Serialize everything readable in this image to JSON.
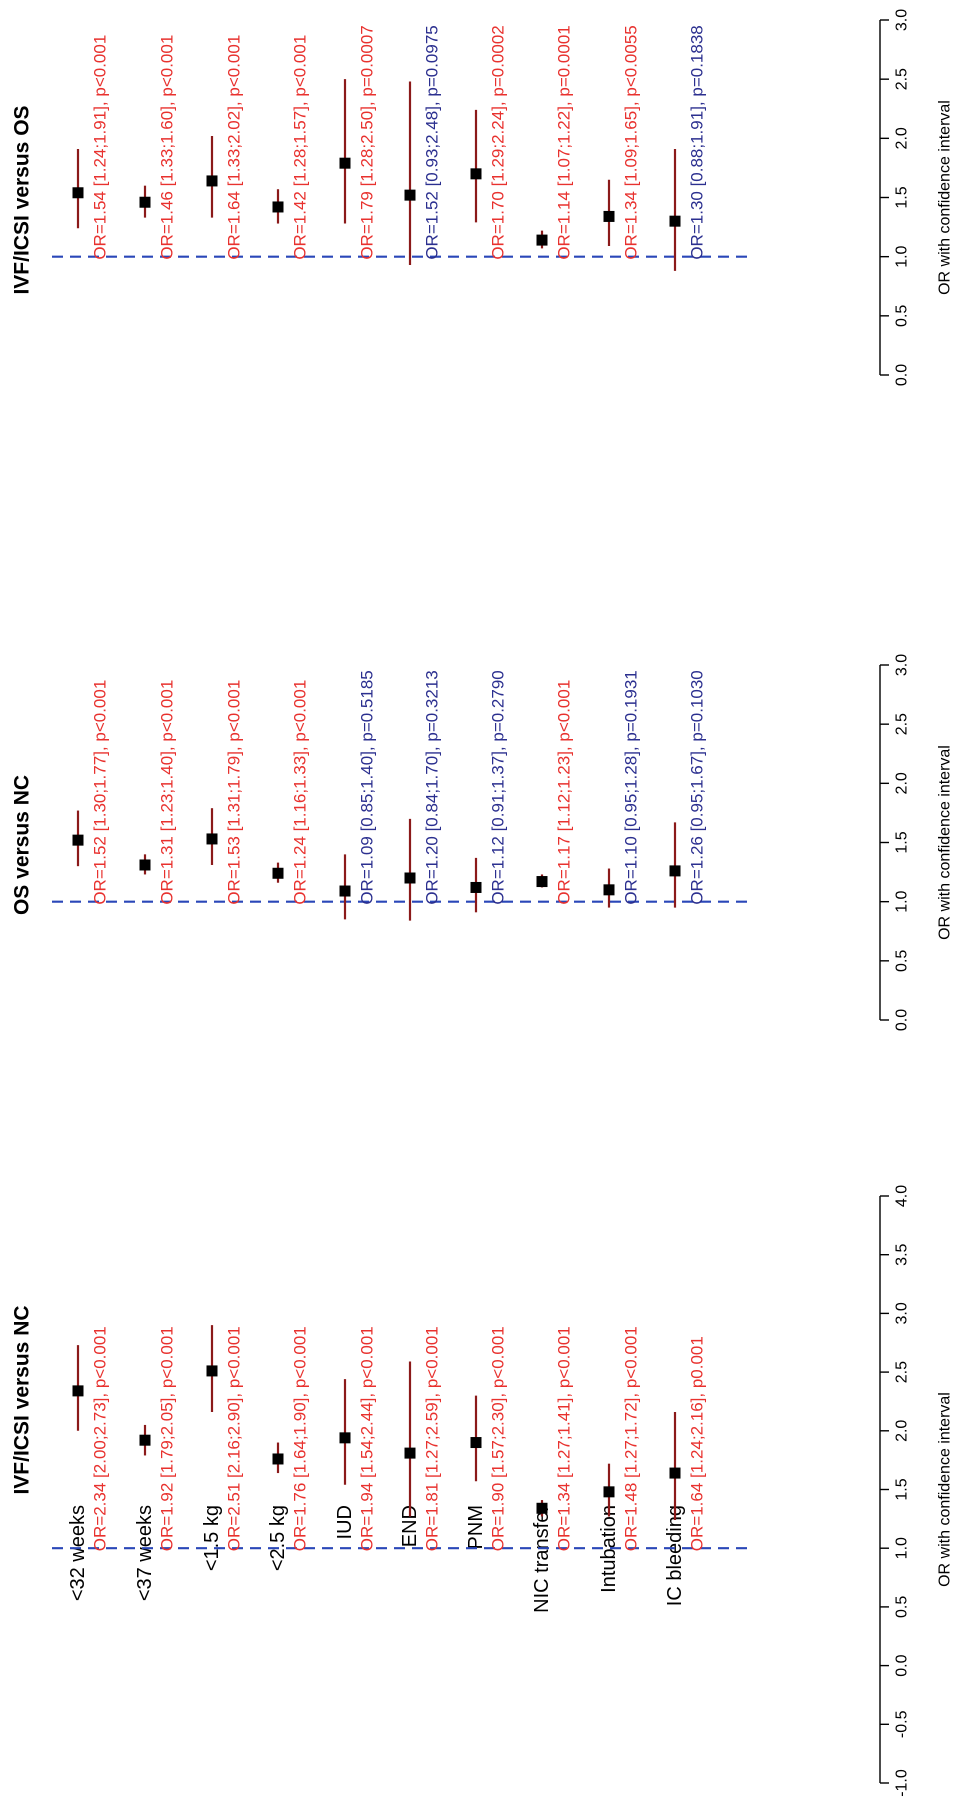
{
  "chart_data": {
    "type": "forest",
    "categories": [
      "<32 weeks",
      "<37 weeks",
      "<1.5 kg",
      "<2.5 kg",
      "IUD",
      "END",
      "PNM",
      "NIC transfer",
      "Intubation",
      "IC bleeding"
    ],
    "colors": {
      "significant": "#e8312e",
      "not_significant": "#2b2f8f",
      "interval": "#8b1a1a",
      "point": "#000000",
      "reference_line": "#2a47b8"
    },
    "panels": [
      {
        "title": "IVF/ICSI versus NC",
        "xlabel": "OR with confidence interval",
        "xlim": [
          -1.0,
          4.0
        ],
        "ticks": [
          "-1.0",
          "-0.5",
          "0.0",
          "0.5",
          "1.0",
          "1.5",
          "2.0",
          "2.5",
          "3.0",
          "3.5",
          "4.0"
        ],
        "reference": 1.0,
        "rows": [
          {
            "or": 2.34,
            "lo": 2.0,
            "hi": 2.73,
            "significant": true,
            "label": "OR=2.34 [2.00;2.73], p<0.001"
          },
          {
            "or": 1.92,
            "lo": 1.79,
            "hi": 2.05,
            "significant": true,
            "label": "OR=1.92 [1.79;2.05], p<0.001"
          },
          {
            "or": 2.51,
            "lo": 2.16,
            "hi": 2.9,
            "significant": true,
            "label": "OR=2.51 [2.16;2.90], p<0.001"
          },
          {
            "or": 1.76,
            "lo": 1.64,
            "hi": 1.9,
            "significant": true,
            "label": "OR=1.76 [1.64;1.90], p<0.001"
          },
          {
            "or": 1.94,
            "lo": 1.54,
            "hi": 2.44,
            "significant": true,
            "label": "OR=1.94 [1.54;2.44], p<0.001"
          },
          {
            "or": 1.81,
            "lo": 1.27,
            "hi": 2.59,
            "significant": true,
            "label": "OR=1.81 [1.27;2.59], p<0.001"
          },
          {
            "or": 1.9,
            "lo": 1.57,
            "hi": 2.3,
            "significant": true,
            "label": "OR=1.90 [1.57;2.30], p<0.001"
          },
          {
            "or": 1.34,
            "lo": 1.27,
            "hi": 1.41,
            "significant": true,
            "label": "OR=1.34 [1.27;1.41], p<0.001"
          },
          {
            "or": 1.48,
            "lo": 1.27,
            "hi": 1.72,
            "significant": true,
            "label": "OR=1.48 [1.27;1.72], p<0.001"
          },
          {
            "or": 1.64,
            "lo": 1.24,
            "hi": 2.16,
            "significant": true,
            "label": "OR=1.64 [1.24;2.16], p0.001"
          }
        ]
      },
      {
        "title": "OS versus NC",
        "xlabel": "OR with confidence interval",
        "xlim": [
          0.0,
          3.0
        ],
        "ticks": [
          "0.0",
          "0.5",
          "1.0",
          "1.5",
          "2.0",
          "2.5",
          "3.0"
        ],
        "reference": 1.0,
        "rows": [
          {
            "or": 1.52,
            "lo": 1.3,
            "hi": 1.77,
            "significant": true,
            "label": "OR=1.52 [1.30;1.77], p<0.001"
          },
          {
            "or": 1.31,
            "lo": 1.23,
            "hi": 1.4,
            "significant": true,
            "label": "OR=1.31 [1.23;1.40], p<0.001"
          },
          {
            "or": 1.53,
            "lo": 1.31,
            "hi": 1.79,
            "significant": true,
            "label": "OR=1.53 [1.31;1.79], p<0.001"
          },
          {
            "or": 1.24,
            "lo": 1.16,
            "hi": 1.33,
            "significant": true,
            "label": "OR=1.24 [1.16;1.33], p<0.001"
          },
          {
            "or": 1.09,
            "lo": 0.85,
            "hi": 1.4,
            "significant": false,
            "label": "OR=1.09 [0.85;1.40], p=0.5185"
          },
          {
            "or": 1.2,
            "lo": 0.84,
            "hi": 1.7,
            "significant": false,
            "label": "OR=1.20 [0.84;1.70], p=0.3213"
          },
          {
            "or": 1.12,
            "lo": 0.91,
            "hi": 1.37,
            "significant": false,
            "label": "OR=1.12 [0.91;1.37], p=0.2790"
          },
          {
            "or": 1.17,
            "lo": 1.12,
            "hi": 1.23,
            "significant": true,
            "label": "OR=1.17 [1.12;1.23], p<0.001"
          },
          {
            "or": 1.1,
            "lo": 0.95,
            "hi": 1.28,
            "significant": false,
            "label": "OR=1.10 [0.95;1.28], p=0.1931"
          },
          {
            "or": 1.26,
            "lo": 0.95,
            "hi": 1.67,
            "significant": false,
            "label": "OR=1.26 [0.95;1.67], p=0.1030"
          }
        ]
      },
      {
        "title": "IVF/ICSI versus OS",
        "xlabel": "OR with confidence interval",
        "xlim": [
          0.0,
          3.0
        ],
        "ticks": [
          "0.0",
          "0.5",
          "1.0",
          "1.5",
          "2.0",
          "2.5",
          "3.0"
        ],
        "reference": 1.0,
        "rows": [
          {
            "or": 1.54,
            "lo": 1.24,
            "hi": 1.91,
            "significant": true,
            "label": "OR=1.54 [1.24;1.91], p<0.001"
          },
          {
            "or": 1.46,
            "lo": 1.33,
            "hi": 1.6,
            "significant": true,
            "label": "OR=1.46 [1.33;1.60], p<0.001"
          },
          {
            "or": 1.64,
            "lo": 1.33,
            "hi": 2.02,
            "significant": true,
            "label": "OR=1.64 [1.33;2.02], p<0.001"
          },
          {
            "or": 1.42,
            "lo": 1.28,
            "hi": 1.57,
            "significant": true,
            "label": "OR=1.42 [1.28;1.57], p<0.001"
          },
          {
            "or": 1.79,
            "lo": 1.28,
            "hi": 2.5,
            "significant": true,
            "label": "OR=1.79 [1.28;2.50], p=0.0007"
          },
          {
            "or": 1.52,
            "lo": 0.93,
            "hi": 2.48,
            "significant": false,
            "label": "OR=1.52 [0.93;2.48], p=0.0975"
          },
          {
            "or": 1.7,
            "lo": 1.29,
            "hi": 2.24,
            "significant": true,
            "label": "OR=1.70 [1.29;2.24], p=0.0002"
          },
          {
            "or": 1.14,
            "lo": 1.07,
            "hi": 1.22,
            "significant": true,
            "label": "OR=1.14 [1.07;1.22], p=0.0001"
          },
          {
            "or": 1.34,
            "lo": 1.09,
            "hi": 1.65,
            "significant": true,
            "label": "OR=1.34 [1.09;1.65], p<0.0055"
          },
          {
            "or": 1.3,
            "lo": 0.88,
            "hi": 1.91,
            "significant": false,
            "label": "OR=1.30 [0.88;1.91], p=0.1838"
          }
        ]
      }
    ]
  }
}
